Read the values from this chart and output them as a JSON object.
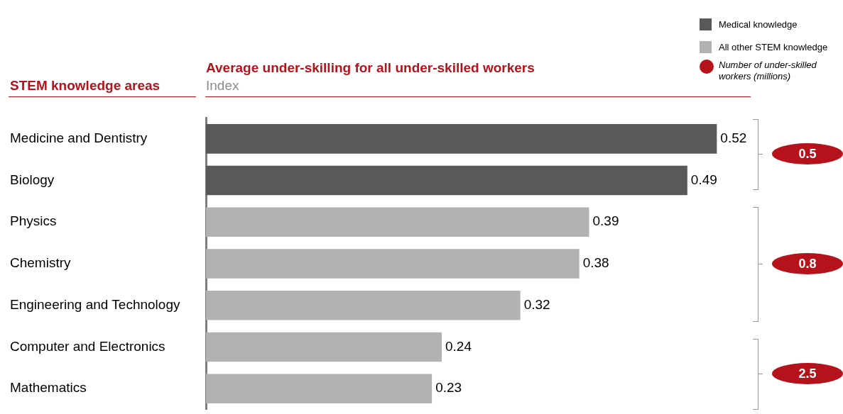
{
  "chart_data": {
    "type": "bar",
    "orientation": "horizontal",
    "title": "Average under-skilling for all under-skilled workers",
    "subtitle": "Index",
    "ylabel": "STEM knowledge areas",
    "categories": [
      "Medicine and Dentistry",
      "Biology",
      "Physics",
      "Chemistry",
      "Engineering and Technology",
      "Computer and Electronics",
      "Mathematics"
    ],
    "series": [
      {
        "name": "Medical knowledge",
        "color": "#595959",
        "values": [
          0.52,
          0.49,
          null,
          null,
          null,
          null,
          null
        ]
      },
      {
        "name": "All other STEM knowledge",
        "color": "#b2b2b2",
        "values": [
          null,
          null,
          0.39,
          0.38,
          0.32,
          0.24,
          0.23
        ]
      }
    ],
    "data_labels": true,
    "legend": "top right",
    "grid": false,
    "annotations": [
      "Number of under-skilled workers (millions)",
      "0.5",
      "0.8",
      "2.5"
    ]
  }
}
